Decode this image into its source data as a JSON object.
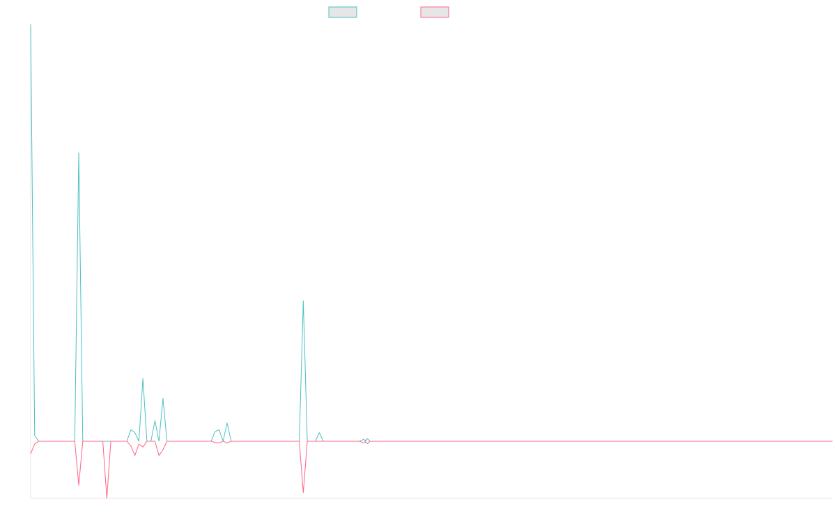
{
  "chart_data": {
    "type": "line",
    "title": "",
    "xlabel": "",
    "ylabel": "",
    "x_count": 201,
    "ylim": [
      -100,
      730
    ],
    "grid": false,
    "legend_position": "top-center",
    "series": [
      {
        "name": "",
        "color": "#4bc0c0",
        "fill": "#e6e6e6",
        "points": [
          [
            0,
            730
          ],
          [
            1,
            10
          ],
          [
            2,
            0
          ],
          [
            11,
            0
          ],
          [
            12,
            505
          ],
          [
            13,
            0
          ],
          [
            24,
            0
          ],
          [
            25,
            20
          ],
          [
            26,
            15
          ],
          [
            27,
            0
          ],
          [
            28,
            110
          ],
          [
            29,
            0
          ],
          [
            30,
            0
          ],
          [
            31,
            36
          ],
          [
            32,
            0
          ],
          [
            33,
            75
          ],
          [
            34,
            0
          ],
          [
            45,
            0
          ],
          [
            46,
            17
          ],
          [
            47,
            20
          ],
          [
            48,
            0
          ],
          [
            49,
            32
          ],
          [
            50,
            0
          ],
          [
            67,
            0
          ],
          [
            68,
            246
          ],
          [
            69,
            0
          ],
          [
            71,
            0
          ],
          [
            72,
            15
          ],
          [
            73,
            0
          ],
          [
            82,
            0
          ],
          [
            83,
            3
          ],
          [
            84,
            0
          ],
          [
            200,
            0
          ]
        ]
      },
      {
        "name": "",
        "color": "#ff6384",
        "fill": "#e6e6e6",
        "points": [
          [
            0,
            -22
          ],
          [
            1,
            -5
          ],
          [
            2,
            0
          ],
          [
            11,
            0
          ],
          [
            12,
            -77
          ],
          [
            13,
            0
          ],
          [
            18,
            0
          ],
          [
            19,
            -100
          ],
          [
            20,
            0
          ],
          [
            24,
            0
          ],
          [
            25,
            -8
          ],
          [
            26,
            -25
          ],
          [
            27,
            -5
          ],
          [
            28,
            -10
          ],
          [
            29,
            0
          ],
          [
            31,
            0
          ],
          [
            32,
            -25
          ],
          [
            33,
            -15
          ],
          [
            34,
            0
          ],
          [
            45,
            0
          ],
          [
            46,
            -2
          ],
          [
            47,
            -3
          ],
          [
            48,
            0
          ],
          [
            49,
            -3
          ],
          [
            50,
            0
          ],
          [
            67,
            0
          ],
          [
            68,
            -90
          ],
          [
            69,
            0
          ],
          [
            82,
            0
          ],
          [
            83,
            -3
          ],
          [
            84,
            0
          ],
          [
            200,
            0
          ]
        ]
      }
    ]
  }
}
